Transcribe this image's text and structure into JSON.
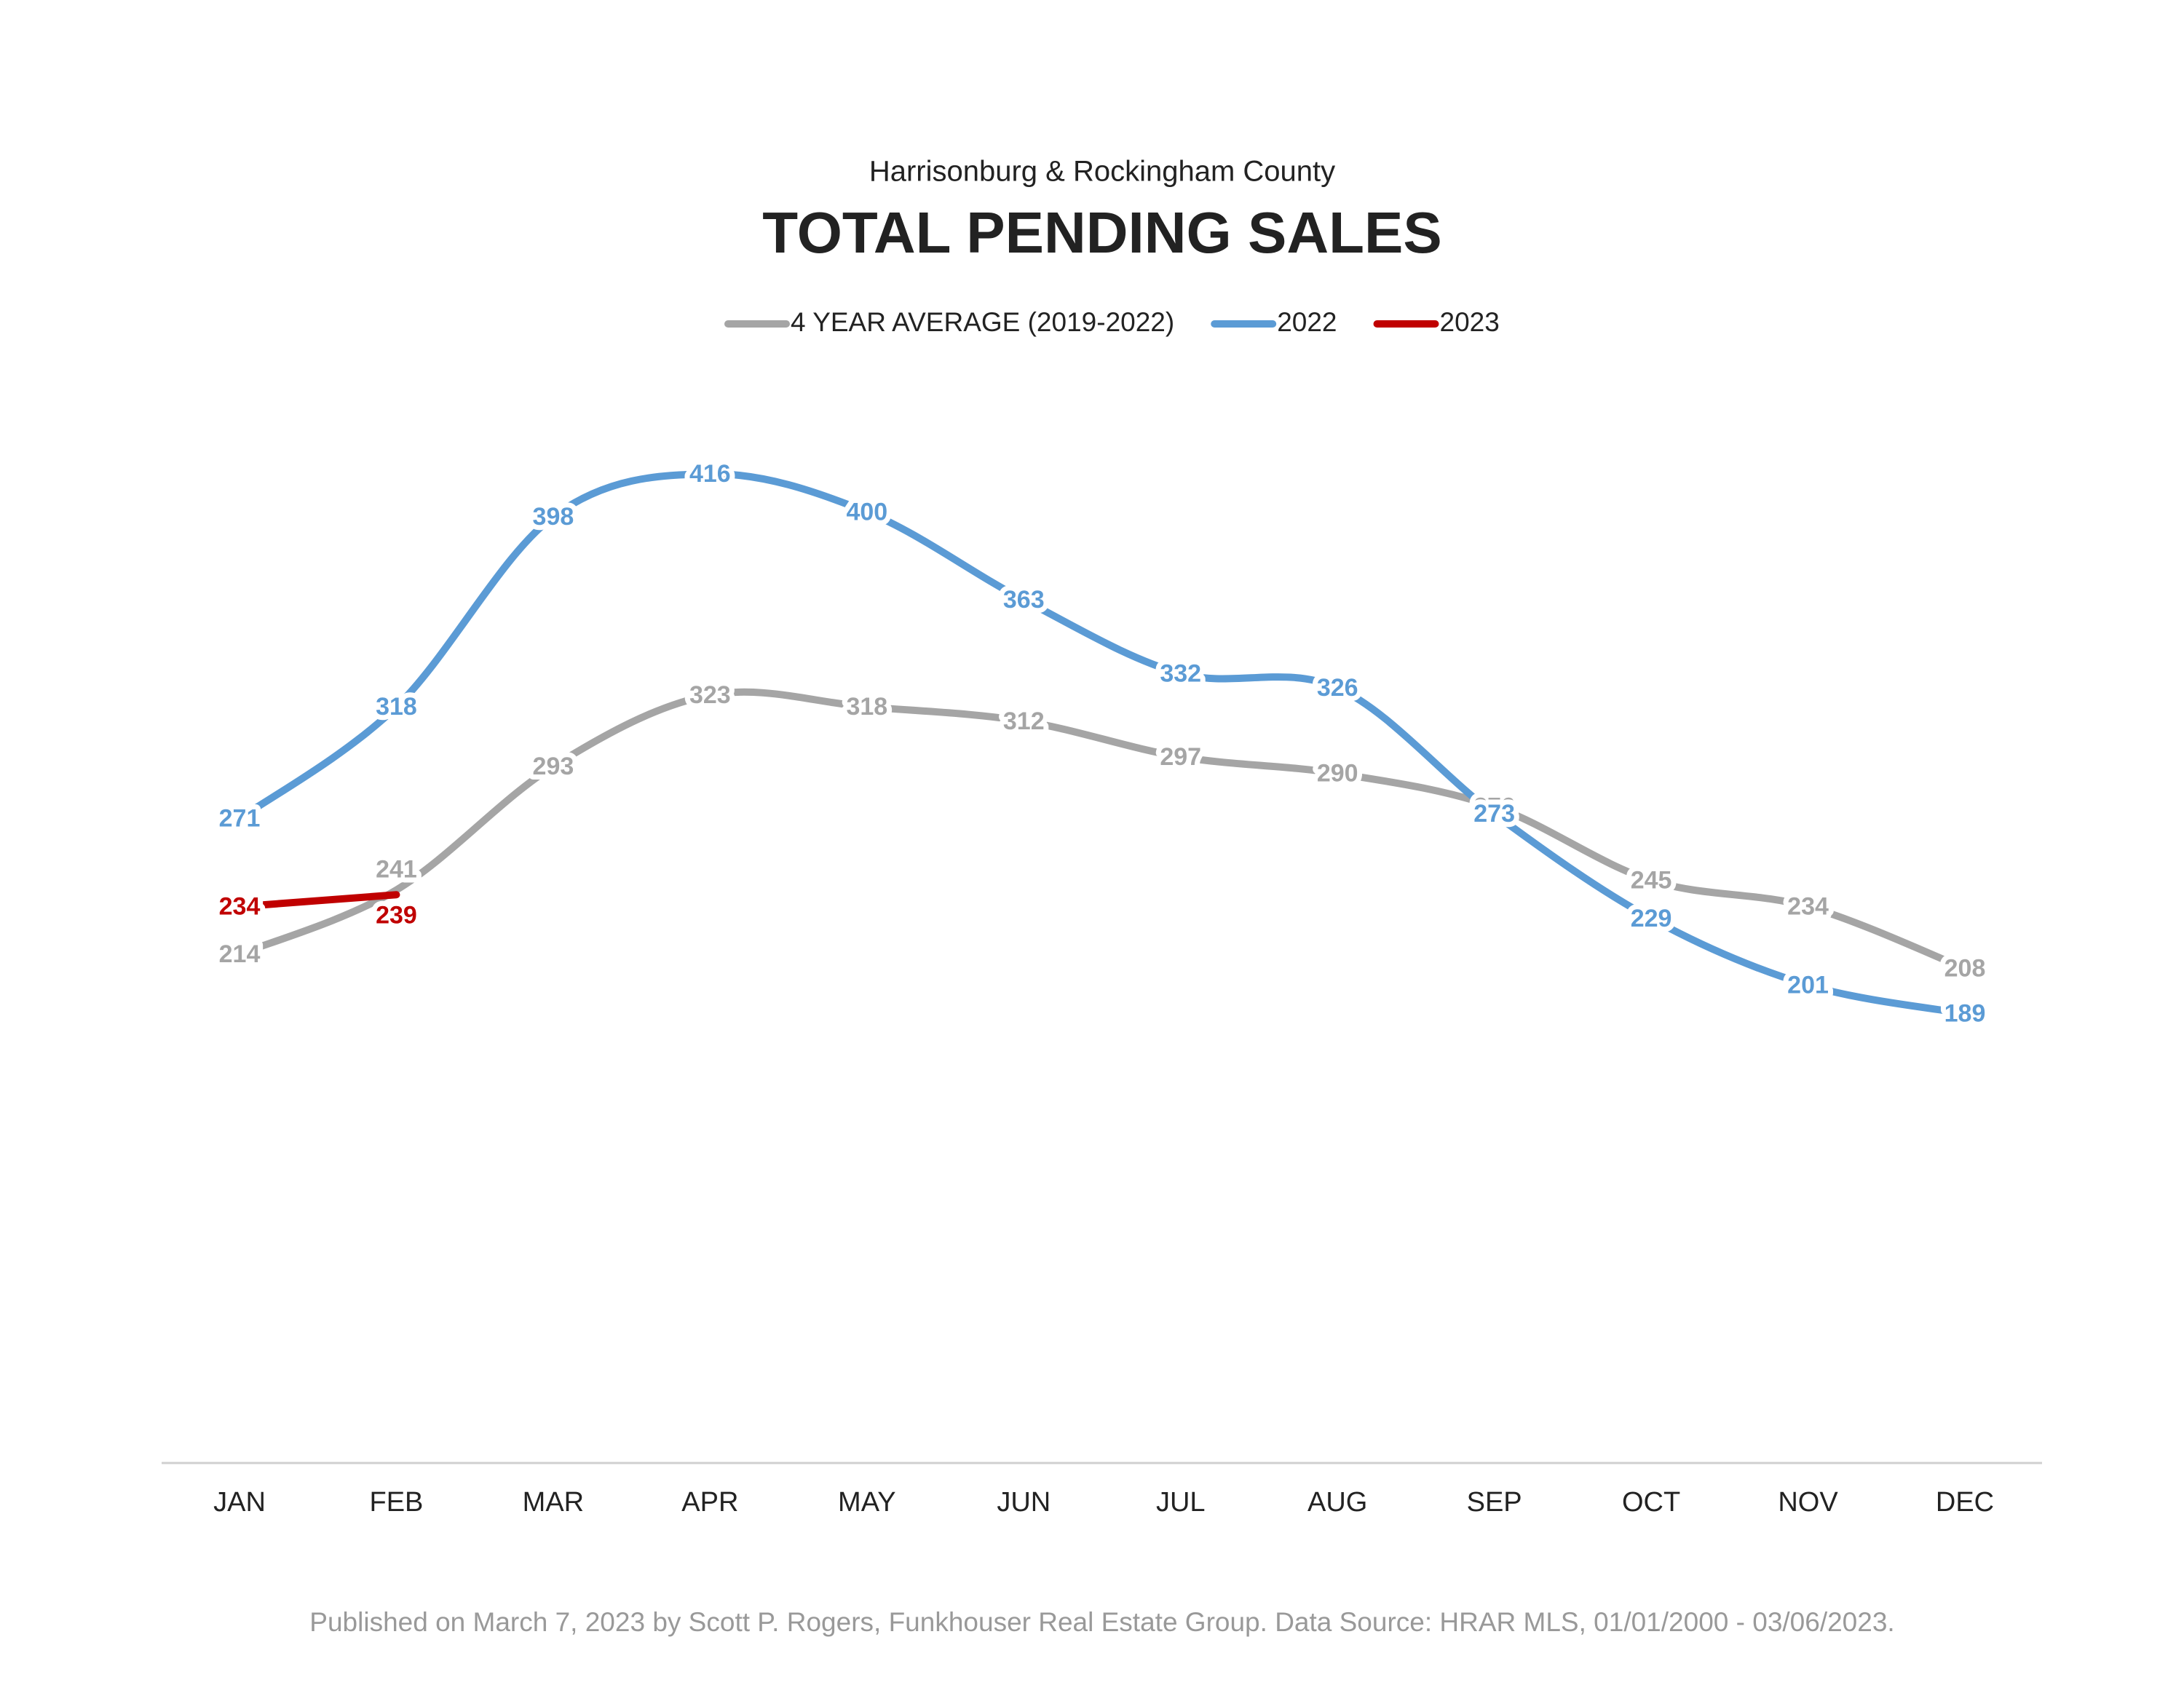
{
  "chart_data": {
    "type": "line",
    "subtitle": "Harrisonburg & Rockingham County",
    "title": "TOTAL PENDING SALES",
    "footer": "Published on March 7, 2023 by Scott P. Rogers, Funkhouser Real Estate Group. Data Source: HRAR MLS, 01/01/2000 - 03/06/2023.",
    "categories": [
      "JAN",
      "FEB",
      "MAR",
      "APR",
      "MAY",
      "JUN",
      "JUL",
      "AUG",
      "SEP",
      "OCT",
      "NOV",
      "DEC"
    ],
    "series": [
      {
        "name": "4 YEAR AVERAGE (2019-2022)",
        "color": "#a5a5a5",
        "values": [
          214,
          241,
          293,
          323,
          318,
          312,
          297,
          290,
          276,
          245,
          234,
          208
        ]
      },
      {
        "name": "2022",
        "color": "#5b9bd5",
        "values": [
          271,
          318,
          398,
          416,
          400,
          363,
          332,
          326,
          273,
          229,
          201,
          189
        ]
      },
      {
        "name": "2023",
        "color": "#c00000",
        "values": [
          234,
          239,
          null,
          null,
          null,
          null,
          null,
          null,
          null,
          null,
          null,
          null
        ]
      }
    ],
    "ylim": [
      0,
      450
    ],
    "legend": "top"
  }
}
